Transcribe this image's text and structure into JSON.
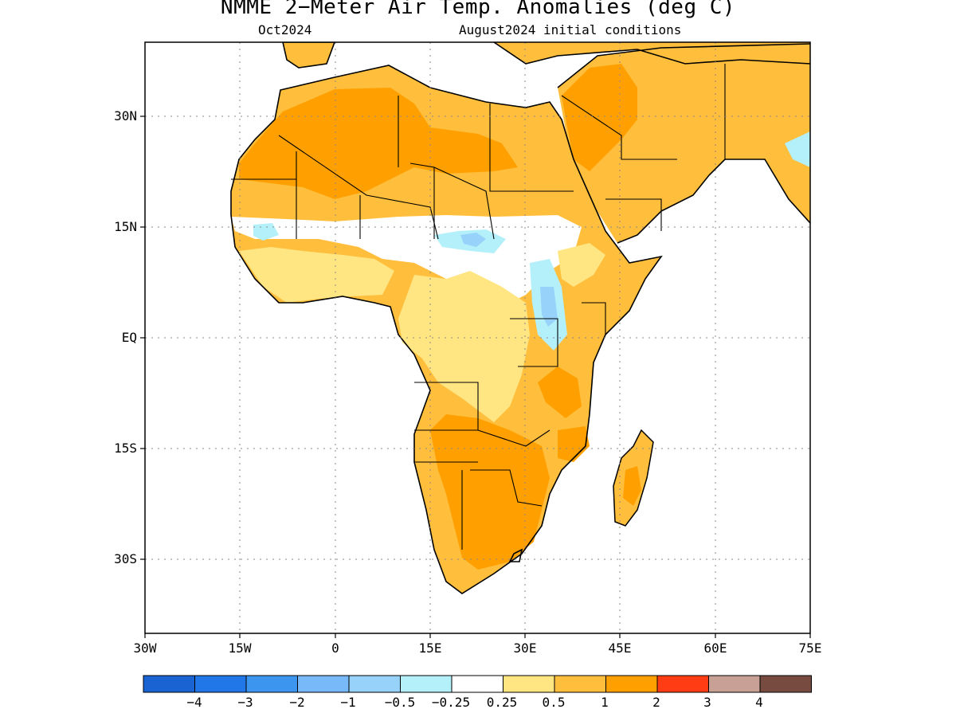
{
  "title": "NMME 2−Meter Air Temp. Anomalies (deg C)",
  "subtitle_left": "Oct2024",
  "subtitle_right": "August2024 initial conditions",
  "lat_labels": [
    "30N",
    "15N",
    "EQ",
    "15S",
    "30S"
  ],
  "lon_labels": [
    "30W",
    "15W",
    "0",
    "15E",
    "30E",
    "45E",
    "60E",
    "75E"
  ],
  "colorbar": {
    "labels": [
      "−4",
      "−3",
      "−2",
      "−1",
      "−0.5",
      "−0.25",
      "0.25",
      "0.5",
      "1",
      "2",
      "3",
      "4"
    ],
    "colors": [
      "#1964d2",
      "#2277e8",
      "#3c96f0",
      "#78b9fa",
      "#96d2fa",
      "#b4f0fa",
      "#ffffff",
      "#ffe682",
      "#ffbe3c",
      "#ffa000",
      "#ff3c14",
      "#c8a096",
      "#784b41"
    ]
  },
  "colors": {
    "anomaly_0_5_1": "#ffbe3c",
    "anomaly_1_2": "#ffa000",
    "anomaly_0_25_0_5": "#ffe682",
    "anomaly_neg_0_25": "#b4f0fa",
    "anomaly_neg_0_5": "#96d2fa"
  }
}
